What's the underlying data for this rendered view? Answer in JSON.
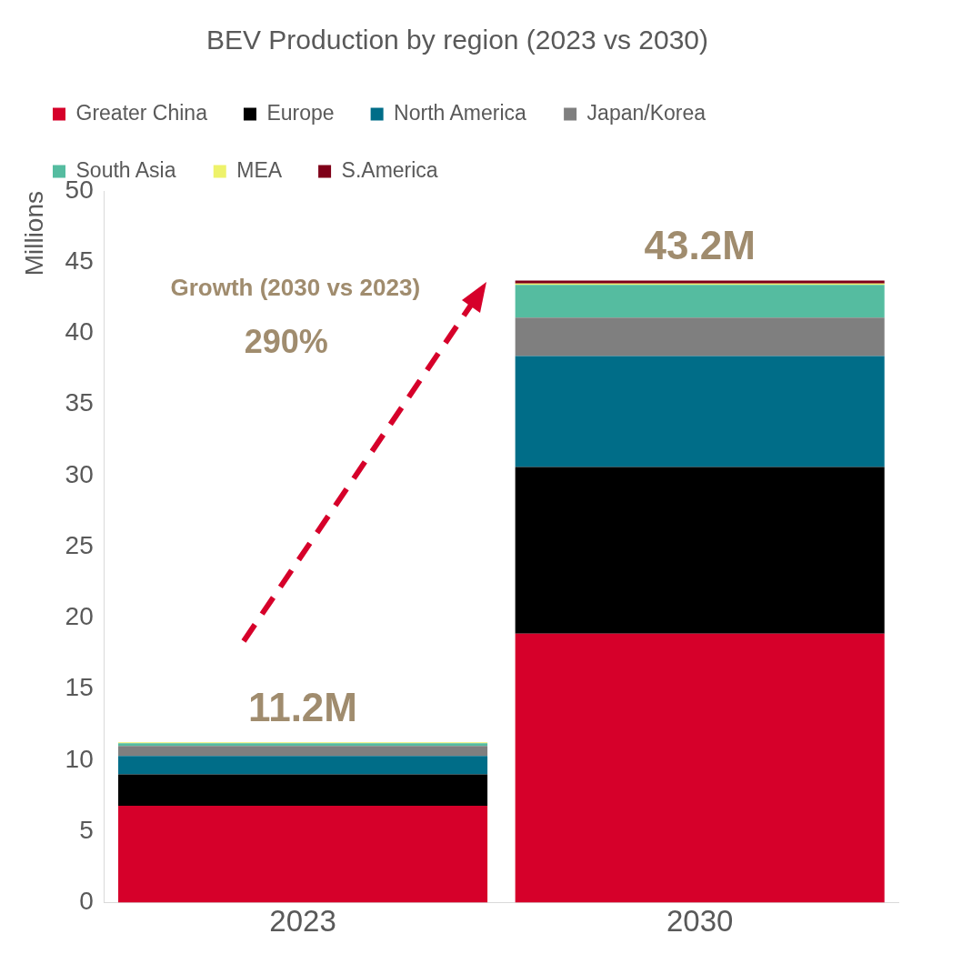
{
  "chart_data": {
    "type": "bar",
    "title": "BEV Production by region (2023 vs 2030)",
    "ylabel": "Millions",
    "categories": [
      "2023",
      "2030"
    ],
    "stacked": true,
    "series": [
      {
        "name": "Greater China",
        "color": "#d6002a",
        "values": [
          6.8,
          18.9
        ]
      },
      {
        "name": "Europe",
        "color": "#000000",
        "values": [
          2.2,
          11.7
        ]
      },
      {
        "name": "North America",
        "color": "#006d88",
        "values": [
          1.3,
          7.8
        ]
      },
      {
        "name": "Japan/Korea",
        "color": "#7f7f7f",
        "values": [
          0.7,
          2.7
        ]
      },
      {
        "name": "South Asia",
        "color": "#55bca0",
        "values": [
          0.2,
          2.3
        ]
      },
      {
        "name": "MEA",
        "color": "#eef26a",
        "values": [
          0.05,
          0.1
        ]
      },
      {
        "name": "S.America",
        "color": "#7f0018",
        "values": [
          0,
          0.2
        ]
      }
    ],
    "annotations": [
      "Growth (2030 vs 2023)",
      "290%",
      {
        "text": "11.2M",
        "x": "2023",
        "y": 11.2
      },
      {
        "text": "43.2M",
        "x": "2030",
        "y": 43.7
      }
    ],
    "ylim": [
      0,
      50
    ],
    "yticks": [
      0,
      5,
      10,
      15,
      20,
      25,
      30,
      35,
      40,
      45,
      50
    ],
    "grid": false,
    "legend": "top"
  }
}
